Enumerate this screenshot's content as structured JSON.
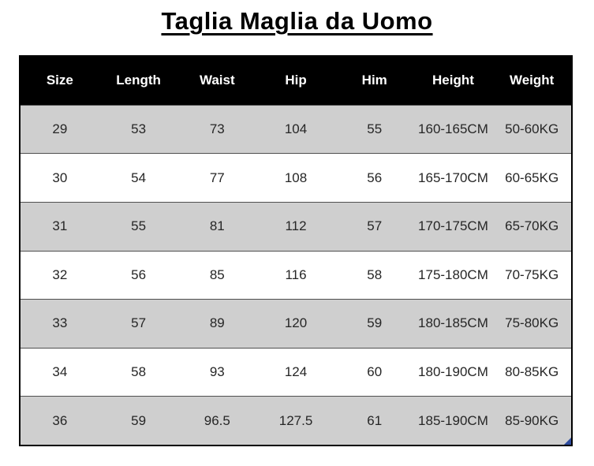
{
  "title": "Taglia Maglia da Uomo",
  "chart_data": {
    "type": "table",
    "title": "Taglia Maglia da Uomo",
    "columns": [
      "Size",
      "Length",
      "Waist",
      "Hip",
      "Him",
      "Height",
      "Weight"
    ],
    "rows": [
      [
        "29",
        "53",
        "73",
        "104",
        "55",
        "160-165CM",
        "50-60KG"
      ],
      [
        "30",
        "54",
        "77",
        "108",
        "56",
        "165-170CM",
        "60-65KG"
      ],
      [
        "31",
        "55",
        "81",
        "112",
        "57",
        "170-175CM",
        "65-70KG"
      ],
      [
        "32",
        "56",
        "85",
        "116",
        "58",
        "175-180CM",
        "70-75KG"
      ],
      [
        "33",
        "57",
        "89",
        "120",
        "59",
        "180-185CM",
        "75-80KG"
      ],
      [
        "34",
        "58",
        "93",
        "124",
        "60",
        "180-190CM",
        "80-85KG"
      ],
      [
        "36",
        "59",
        "96.5",
        "127.5",
        "61",
        "185-190CM",
        "85-90KG"
      ]
    ],
    "layout": {
      "alternating_rows": "odd rows gray, even rows white",
      "header_style": "black background, white bold text",
      "grid": "horizontal dividers only, black outer border"
    }
  },
  "colors": {
    "header_bg": "#000000",
    "header_text": "#ffffff",
    "alt_row_bg": "#cfcfcf",
    "row_bg": "#ffffff",
    "outer_border": "#000000",
    "row_divider": "#4f4f4f",
    "cell_text": "#262626",
    "title_text": "#000000",
    "corner_marker": "#2f4da0"
  },
  "icons": {
    "corner_marker": "blue-corner-triangle"
  }
}
